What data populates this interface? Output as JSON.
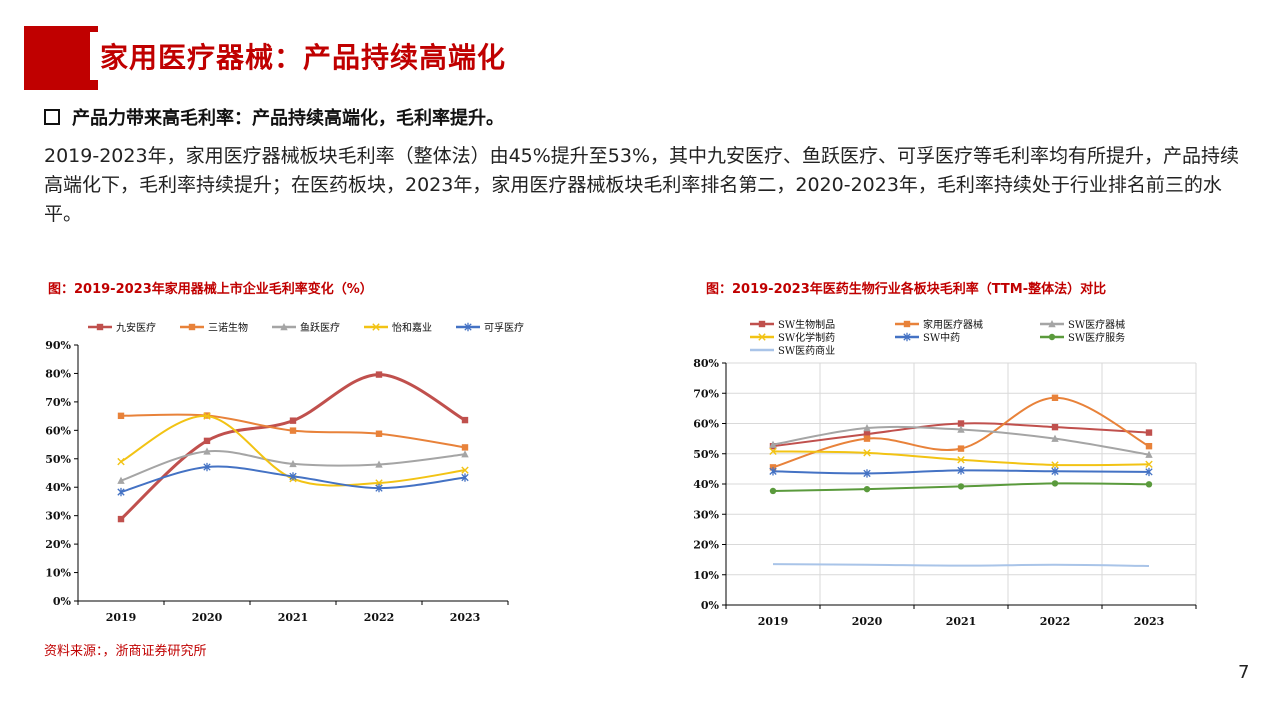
{
  "title": "家用医疗器械：产品持续高端化",
  "subheading": "产品力带来高毛利率：产品持续高端化，毛利率提升。",
  "paragraph": "2019-2023年，家用医疗器械板块毛利率（整体法）由45%提升至53%，其中九安医疗、鱼跃医疗、可孚医疗等毛利率均有所提升，产品持续高端化下，毛利率持续提升；在医药板块，2023年，家用医疗器械板块毛利率排名第二，2020-2023年，毛利率持续处于行业排名前三的水平。",
  "source": "资料来源：，浙商证券研究所",
  "page_number": "7",
  "chart_data": [
    {
      "type": "line",
      "title": "图：2019-2023年家用器械上市企业毛利率变化（%）",
      "categories": [
        "2019",
        "2020",
        "2021",
        "2022",
        "2023"
      ],
      "ylim": [
        0,
        90
      ],
      "yticks": [
        "0%",
        "10%",
        "20%",
        "30%",
        "40%",
        "50%",
        "60%",
        "70%",
        "80%",
        "90%"
      ],
      "grid": false,
      "legend_position": "top",
      "series": [
        {
          "name": "九安医疗",
          "color": "#c0504d",
          "marker": "square",
          "values": [
            28.8,
            56.3,
            63.4,
            79.6,
            63.6
          ]
        },
        {
          "name": "三诺生物",
          "color": "#e8823a",
          "marker": "square",
          "values": [
            65.1,
            65.2,
            59.9,
            58.8,
            54.0
          ]
        },
        {
          "name": "鱼跃医疗",
          "color": "#a5a5a5",
          "marker": "triangle",
          "values": [
            42.3,
            52.6,
            48.2,
            48.0,
            51.6
          ]
        },
        {
          "name": "怡和嘉业",
          "color": "#f2c314",
          "marker": "x",
          "values": [
            49.0,
            65.0,
            43.0,
            41.5,
            46.0
          ]
        },
        {
          "name": "可孚医疗",
          "color": "#4472c4",
          "marker": "star",
          "values": [
            38.3,
            47.1,
            43.8,
            39.7,
            43.4
          ]
        }
      ]
    },
    {
      "type": "line",
      "title": "图：2019-2023年医药生物行业各板块毛利率（TTM-整体法）对比",
      "categories": [
        "2019",
        "2020",
        "2021",
        "2022",
        "2023"
      ],
      "ylim": [
        0,
        80
      ],
      "yticks": [
        "0%",
        "10%",
        "20%",
        "30%",
        "40%",
        "50%",
        "60%",
        "70%",
        "80%"
      ],
      "grid": true,
      "legend_position": "top",
      "series": [
        {
          "name": "SW生物制品",
          "color": "#c0504d",
          "marker": "square",
          "values": [
            52.5,
            56.5,
            60.0,
            58.8,
            57.0
          ]
        },
        {
          "name": "家用医疗器械",
          "color": "#e8823a",
          "marker": "square",
          "values": [
            45.5,
            55.0,
            51.7,
            68.5,
            52.5
          ]
        },
        {
          "name": "SW医疗器械",
          "color": "#a5a5a5",
          "marker": "triangle",
          "values": [
            53.0,
            58.5,
            58.0,
            55.0,
            49.7
          ]
        },
        {
          "name": "SW化学制药",
          "color": "#f2c314",
          "marker": "x",
          "values": [
            50.8,
            50.3,
            48.0,
            46.3,
            46.5
          ]
        },
        {
          "name": "SW中药",
          "color": "#4472c4",
          "marker": "star",
          "values": [
            44.2,
            43.5,
            44.5,
            44.2,
            44.0
          ]
        },
        {
          "name": "SW医疗服务",
          "color": "#5a9a3c",
          "marker": "circle",
          "values": [
            37.7,
            38.3,
            39.2,
            40.2,
            39.9
          ]
        },
        {
          "name": "SW医药商业",
          "color": "#a9c4e8",
          "marker": "none",
          "values": [
            13.5,
            13.3,
            13.0,
            13.3,
            12.9
          ]
        }
      ]
    }
  ]
}
